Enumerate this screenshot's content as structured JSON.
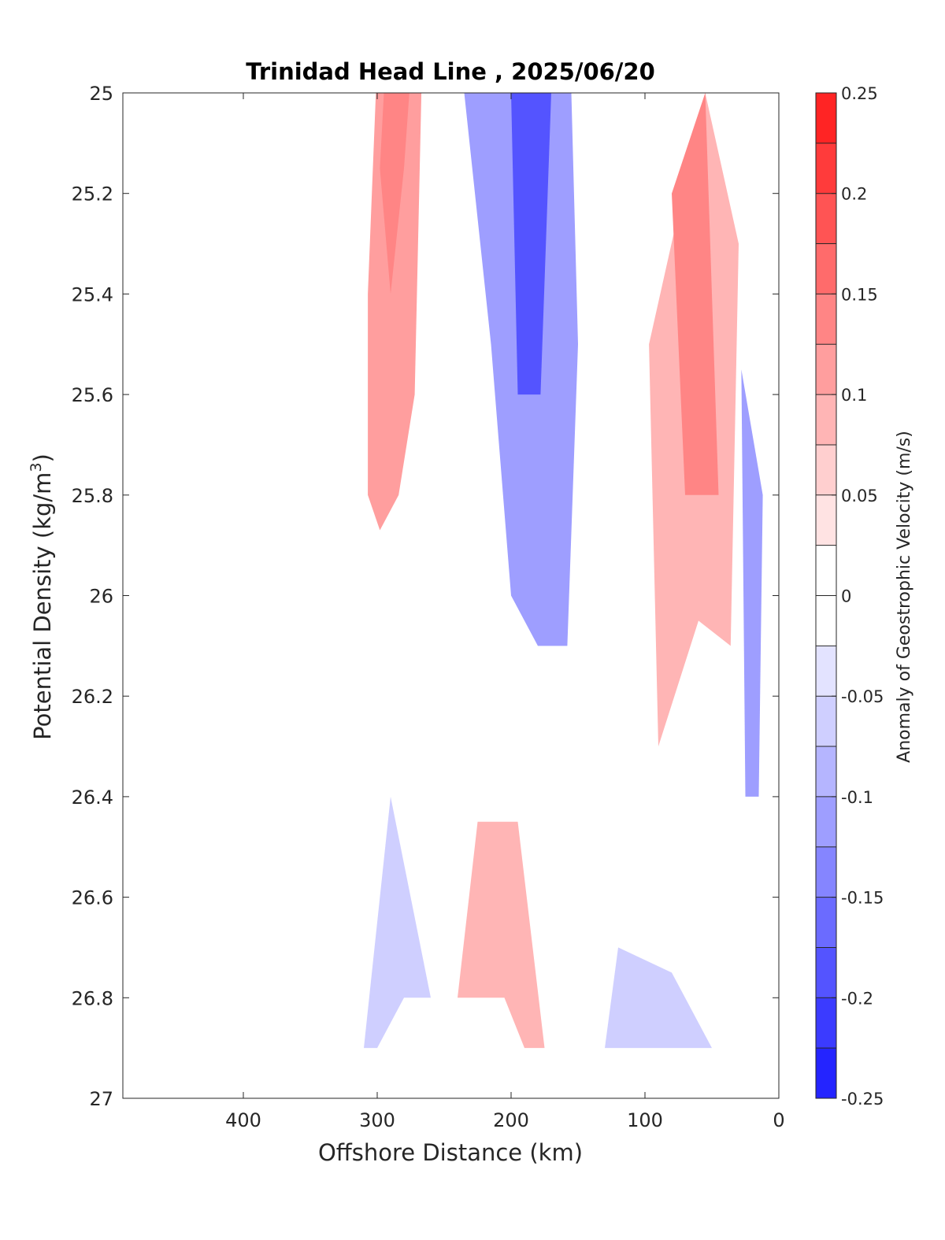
{
  "chart_data": {
    "type": "heatmap",
    "subtype": "filled-contour section",
    "title": "Trinidad Head Line , 2025/06/20",
    "xlabel": "Offshore Distance (km)",
    "ylabel": "Potential Density (kg/m",
    "ylabel_superscript": "3",
    "ylabel_suffix": ")",
    "xlim": [
      490,
      0
    ],
    "ylim": [
      25,
      27
    ],
    "x_direction": "reversed",
    "y_direction": "reversed (increasing downward)",
    "xticks": [
      400,
      300,
      200,
      100,
      0
    ],
    "xtick_labels": [
      "400",
      "300",
      "200",
      "100",
      "0"
    ],
    "yticks": [
      25,
      25.2,
      25.4,
      25.6,
      25.8,
      26,
      26.2,
      26.4,
      26.6,
      26.8,
      27
    ],
    "ytick_labels": [
      "25",
      "25.2",
      "25.4",
      "25.6",
      "25.8",
      "26",
      "26.2",
      "26.4",
      "26.6",
      "26.8",
      "27"
    ],
    "colorbar": {
      "label": "Anomaly of Geostrophic Velocity (m/s)",
      "range": [
        -0.25,
        0.25
      ],
      "levels": [
        -0.25,
        -0.225,
        -0.2,
        -0.175,
        -0.15,
        -0.125,
        -0.1,
        -0.075,
        -0.05,
        -0.025,
        0.025,
        0.05,
        0.075,
        0.1,
        0.125,
        0.15,
        0.175,
        0.2,
        0.225,
        0.25
      ],
      "ticks": [
        0.25,
        0.2,
        0.15,
        0.1,
        0.05,
        0,
        -0.05,
        -0.1,
        -0.15,
        -0.2,
        -0.25
      ],
      "tick_labels": [
        "0.25",
        "0.2",
        "0.15",
        "0.1",
        "0.05",
        "0",
        "-0.05",
        "-0.1",
        "-0.15",
        "-0.2",
        "-0.25"
      ],
      "colors_top_to_bottom": [
        "#ff0a0a",
        "#ff2424",
        "#ff3b3b",
        "#ff5454",
        "#ff6b6b",
        "#ff8585",
        "#ff9e9e",
        "#ffb5b5",
        "#ffcfcf",
        "#ffe3e3",
        "#ffffff",
        "#ffffff",
        "#e3e3ff",
        "#cfcfff",
        "#b5b5ff",
        "#9e9eff",
        "#8585ff",
        "#6b6bff",
        "#5454ff",
        "#3b3bff",
        "#2424ff",
        "#0a0aff"
      ]
    },
    "regions": [
      {
        "name": "red core offshore",
        "value": 0.1,
        "polygon": [
          [
            301,
            25
          ],
          [
            267,
            25
          ],
          [
            272,
            25.6
          ],
          [
            284,
            25.8
          ],
          [
            298,
            25.87
          ],
          [
            307,
            25.8
          ],
          [
            307,
            25.4
          ]
        ]
      },
      {
        "name": "red core offshore inner",
        "value": 0.125,
        "polygon": [
          [
            295,
            25
          ],
          [
            276,
            25
          ],
          [
            280,
            25.15
          ],
          [
            290,
            25.4
          ],
          [
            298,
            25.15
          ]
        ]
      },
      {
        "name": "blue jet",
        "value": -0.1,
        "polygon": [
          [
            235,
            25
          ],
          [
            155,
            25
          ],
          [
            150,
            25.5
          ],
          [
            158,
            26.1
          ],
          [
            180,
            26.1
          ],
          [
            200,
            26.0
          ],
          [
            215,
            25.5
          ]
        ]
      },
      {
        "name": "blue jet core",
        "value": -0.175,
        "polygon": [
          [
            200,
            25
          ],
          [
            170,
            25
          ],
          [
            178,
            25.6
          ],
          [
            195,
            25.6
          ]
        ]
      },
      {
        "name": "red nearshore",
        "value": 0.075,
        "polygon": [
          [
            97,
            25.5
          ],
          [
            55,
            25
          ],
          [
            30,
            25.3
          ],
          [
            36,
            26.1
          ],
          [
            60,
            26.05
          ],
          [
            90,
            26.3
          ]
        ]
      },
      {
        "name": "red nearshore core",
        "value": 0.125,
        "polygon": [
          [
            80,
            25.2
          ],
          [
            55,
            25
          ],
          [
            45,
            25.8
          ],
          [
            70,
            25.8
          ]
        ]
      },
      {
        "name": "blue nearshore",
        "value": -0.1,
        "polygon": [
          [
            28,
            25.55
          ],
          [
            12,
            25.8
          ],
          [
            15,
            26.4
          ],
          [
            25,
            26.4
          ]
        ]
      },
      {
        "name": "blue deep offshore",
        "value": -0.05,
        "polygon": [
          [
            310,
            26.9
          ],
          [
            290,
            26.4
          ],
          [
            260,
            26.8
          ],
          [
            280,
            26.8
          ],
          [
            300,
            26.9
          ]
        ]
      },
      {
        "name": "red deep",
        "value": 0.075,
        "polygon": [
          [
            240,
            26.8
          ],
          [
            225,
            26.45
          ],
          [
            195,
            26.45
          ],
          [
            175,
            26.9
          ],
          [
            190,
            26.9
          ],
          [
            205,
            26.8
          ]
        ]
      },
      {
        "name": "blue deep nearshore",
        "value": -0.05,
        "polygon": [
          [
            130,
            26.9
          ],
          [
            120,
            26.7
          ],
          [
            80,
            26.75
          ],
          [
            50,
            26.9
          ]
        ]
      }
    ]
  }
}
